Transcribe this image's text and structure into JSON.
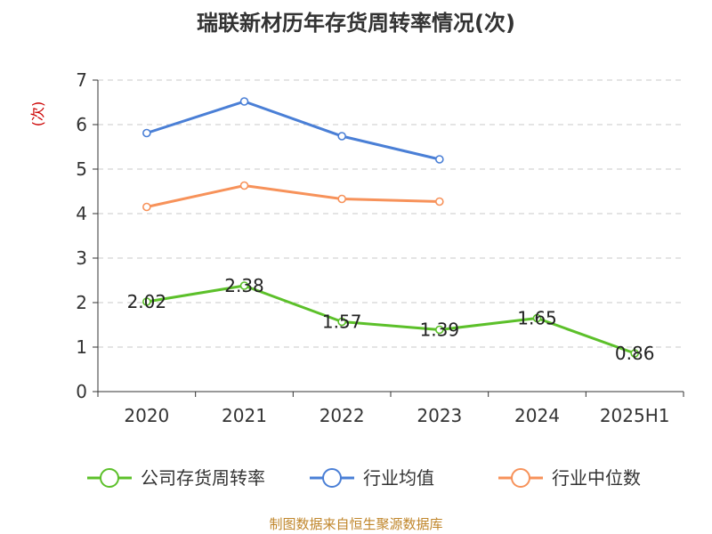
{
  "chart_data": {
    "type": "line",
    "title": "瑞联新材历年存货周转率情况(次)",
    "ylabel": "(次)",
    "categories": [
      "2020",
      "2021",
      "2022",
      "2023",
      "2024",
      "2025H1"
    ],
    "ylim": [
      0,
      7
    ],
    "yticks": [
      "0",
      "1",
      "2",
      "3",
      "4",
      "5",
      "6",
      "7"
    ],
    "grid": true,
    "legend_position": "bottom",
    "series": [
      {
        "name": "公司存货周转率",
        "color": "#5cc02a",
        "values": [
          2.02,
          2.38,
          1.57,
          1.39,
          1.65,
          0.86
        ],
        "labels": [
          "2.02",
          "2.38",
          "1.57",
          "1.39",
          "1.65",
          "0.86"
        ]
      },
      {
        "name": "行业均值",
        "color": "#4a7fd6",
        "values": [
          5.81,
          6.52,
          5.74,
          5.22,
          null,
          null
        ]
      },
      {
        "name": "行业中位数",
        "color": "#f7925a",
        "values": [
          4.15,
          4.63,
          4.33,
          4.27,
          null,
          null
        ]
      }
    ]
  },
  "source": "制图数据来自恒生聚源数据库"
}
